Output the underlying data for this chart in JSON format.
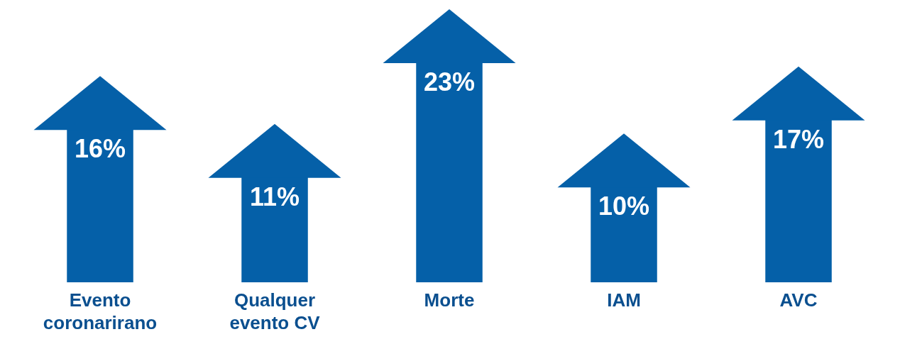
{
  "chart_data": {
    "type": "bar",
    "categories": [
      "Evento coronarirano",
      "Qualquer evento CV",
      "Morte",
      "IAM",
      "AVC"
    ],
    "values": [
      16,
      11,
      23,
      10,
      17
    ],
    "value_labels": [
      "16%",
      "11%",
      "23%",
      "10%",
      "17%"
    ],
    "color": "#0560a8"
  }
}
